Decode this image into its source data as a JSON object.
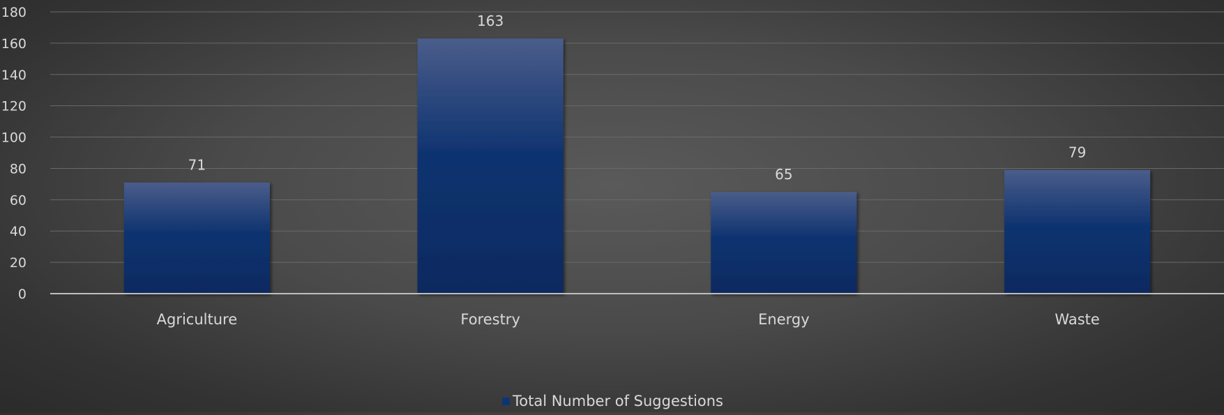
{
  "chart_data": {
    "type": "bar",
    "categories": [
      "Agriculture",
      "Forestry",
      "Energy",
      "Waste"
    ],
    "series": [
      {
        "name": "Total Number of Suggestions",
        "values": [
          71,
          163,
          65,
          79
        ],
        "color": "#0c3575"
      }
    ],
    "y_ticks": [
      "0",
      "20",
      "40",
      "60",
      "80",
      "100",
      "120",
      "140",
      "160",
      "180"
    ],
    "data_labels": [
      "71",
      "163",
      "65",
      "79"
    ],
    "ylim": [
      0,
      180
    ],
    "grid": true,
    "legend_position": "bottom",
    "title": "",
    "xlabel": "",
    "ylabel": ""
  },
  "colors": {
    "bar_top": "#4a5d8a",
    "bar_mid": "#0f3370",
    "bar_bottom": "#0c2a60",
    "gridline": "#6a6a6a",
    "axis": "#bfbfbf",
    "text": "#d9d9d9"
  }
}
